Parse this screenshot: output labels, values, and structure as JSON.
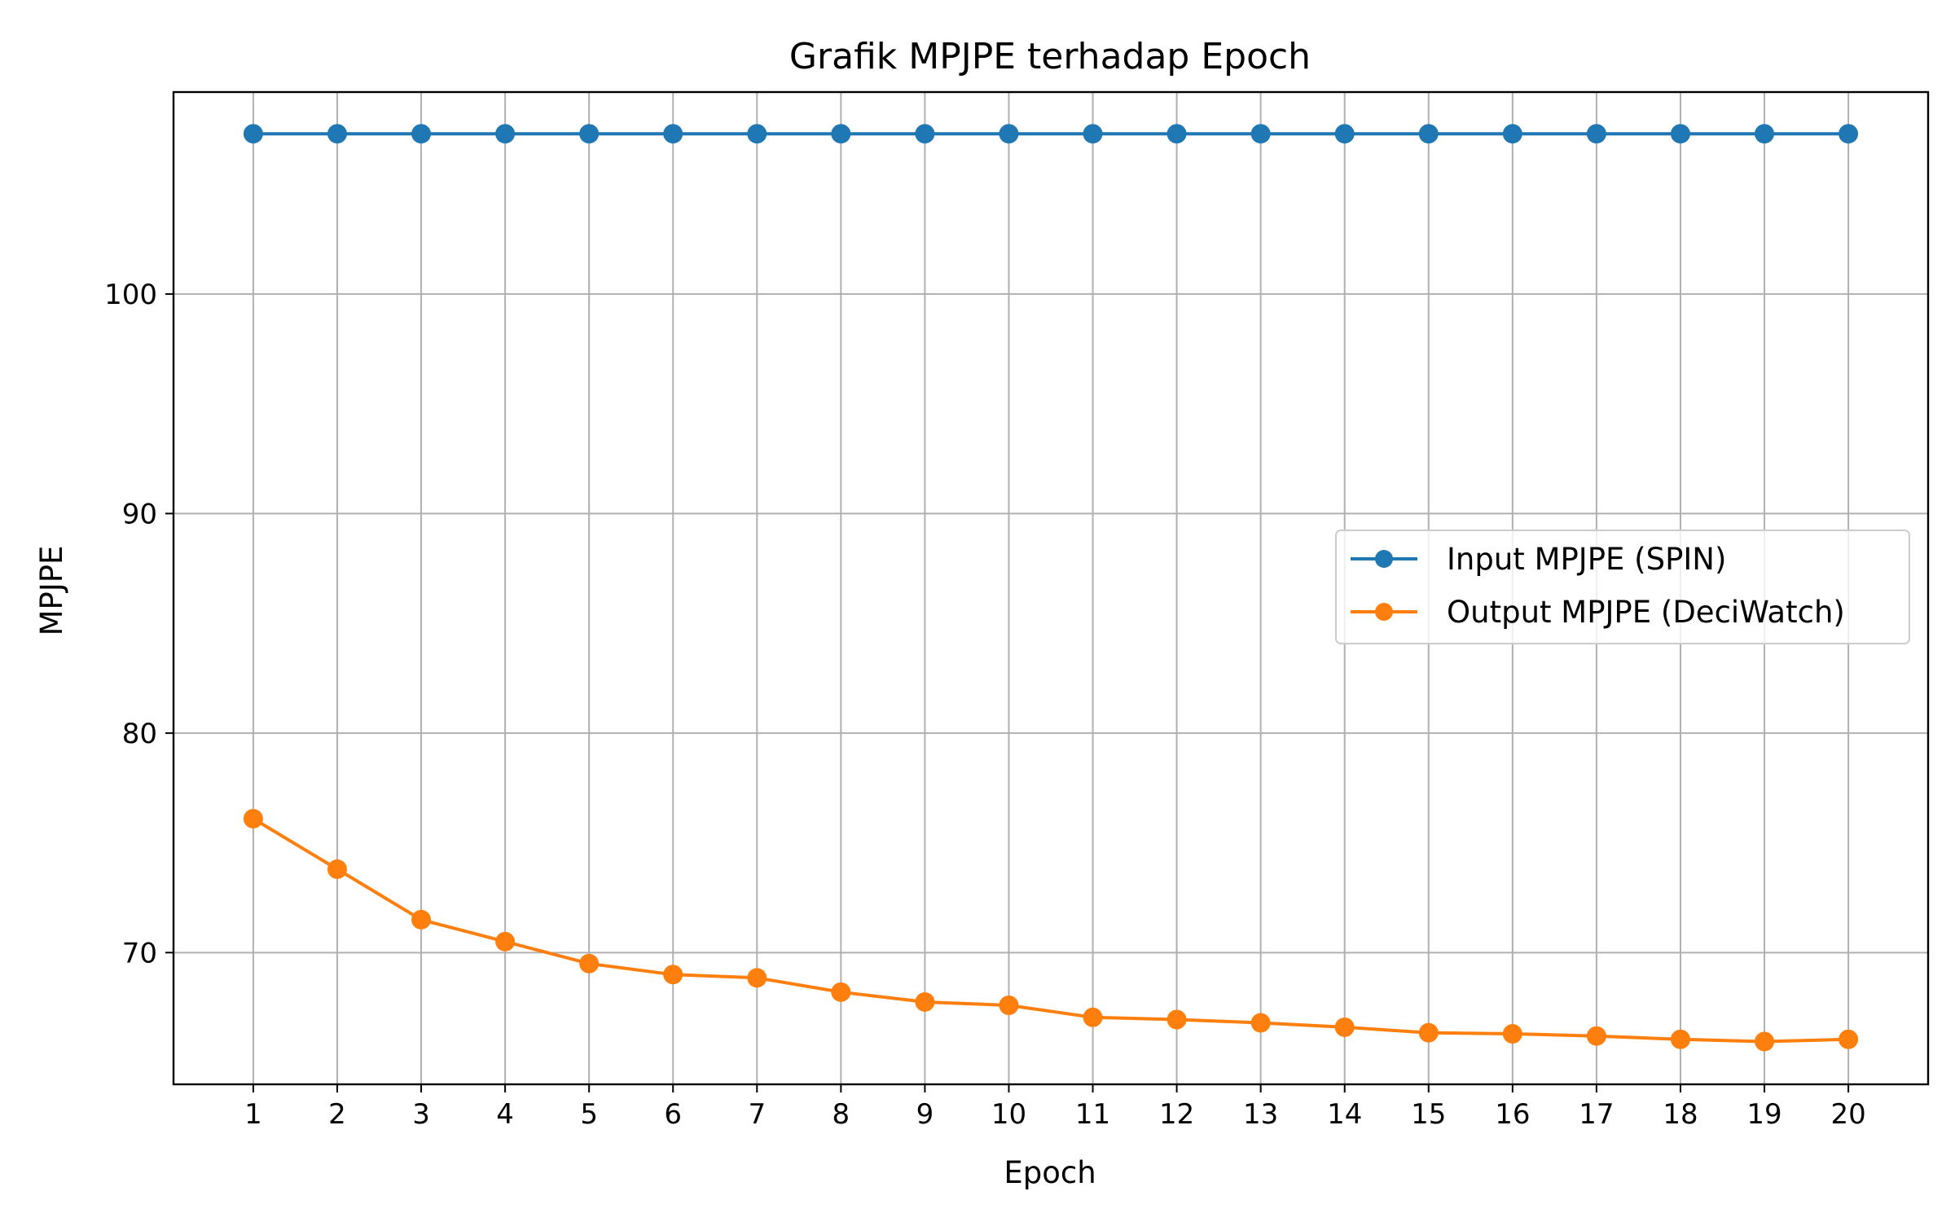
{
  "chart_data": {
    "type": "line",
    "title": "Grafik MPJPE terhadap Epoch",
    "xlabel": "Epoch",
    "ylabel": "MPJPE",
    "x": [
      1,
      2,
      3,
      4,
      5,
      6,
      7,
      8,
      9,
      10,
      11,
      12,
      13,
      14,
      15,
      16,
      17,
      18,
      19,
      20
    ],
    "x_ticks": [
      "1",
      "2",
      "3",
      "4",
      "5",
      "6",
      "7",
      "8",
      "9",
      "10",
      "11",
      "12",
      "13",
      "14",
      "15",
      "16",
      "17",
      "18",
      "19",
      "20"
    ],
    "y_ticks": [
      70,
      80,
      90,
      100
    ],
    "y_tick_labels": [
      "70",
      "80",
      "90",
      "100"
    ],
    "xlim": [
      0.05,
      20.95
    ],
    "ylim": [
      64.0,
      109.2
    ],
    "grid": true,
    "legend_position": "center-right",
    "series": [
      {
        "name": "Input MPJPE (SPIN)",
        "color": "#1f77b4",
        "marker": "circle",
        "values": [
          107.3,
          107.3,
          107.3,
          107.3,
          107.3,
          107.3,
          107.3,
          107.3,
          107.3,
          107.3,
          107.3,
          107.3,
          107.3,
          107.3,
          107.3,
          107.3,
          107.3,
          107.3,
          107.3,
          107.3
        ]
      },
      {
        "name": "Output MPJPE (DeciWatch)",
        "color": "#ff7f0e",
        "marker": "circle",
        "values": [
          76.1,
          73.8,
          71.5,
          70.5,
          69.5,
          69.0,
          68.85,
          68.2,
          67.75,
          67.6,
          67.05,
          66.95,
          66.8,
          66.6,
          66.35,
          66.3,
          66.2,
          66.05,
          65.95,
          66.05
        ]
      }
    ]
  }
}
